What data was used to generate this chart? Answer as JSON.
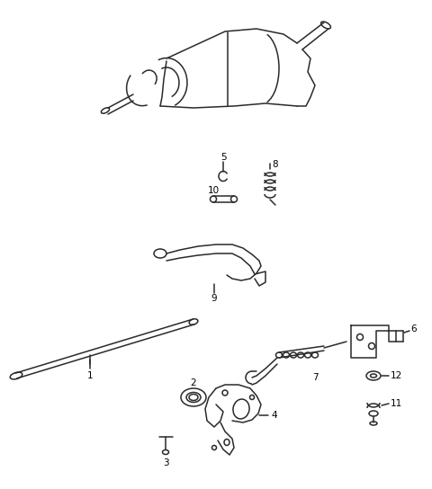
{
  "background_color": "#ffffff",
  "line_color": "#2a2a2a",
  "text_color": "#000000",
  "fig_width": 4.8,
  "fig_height": 5.44,
  "dpi": 100
}
